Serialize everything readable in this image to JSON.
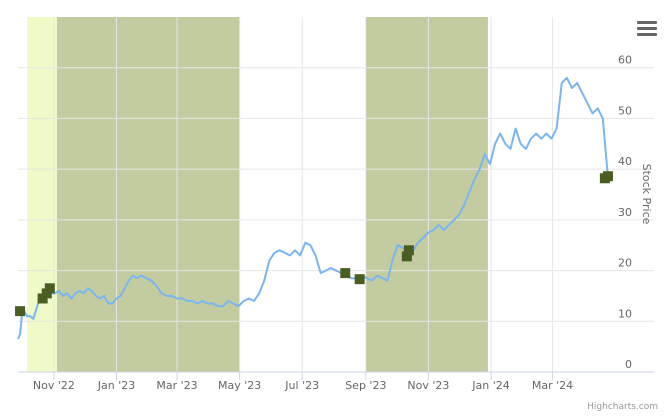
{
  "chart_data": {
    "type": "line",
    "title": "",
    "xlabel": "",
    "ylabel": "Stock Price",
    "ylim": [
      0,
      70
    ],
    "x_range": [
      "2022-09-27",
      "2024-04-26"
    ],
    "x_ticks": [
      {
        "date": "2022-11-01",
        "label": "Nov '22"
      },
      {
        "date": "2023-01-01",
        "label": "Jan '23"
      },
      {
        "date": "2023-03-01",
        "label": "Mar '23"
      },
      {
        "date": "2023-05-01",
        "label": "May '23"
      },
      {
        "date": "2023-07-01",
        "label": "Jul '23"
      },
      {
        "date": "2023-09-01",
        "label": "Sep '23"
      },
      {
        "date": "2023-11-01",
        "label": "Nov '23"
      },
      {
        "date": "2024-01-01",
        "label": "Jan '24"
      },
      {
        "date": "2024-03-01",
        "label": "Mar '24"
      }
    ],
    "y_ticks": [
      0,
      10,
      20,
      30,
      40,
      50,
      60
    ],
    "grid": true,
    "colors": {
      "line": "#7cb5ec",
      "marker": "#4a5d23",
      "band_light": "#eefac8",
      "band_olive": "#c2cca0",
      "grid": "#e6e6e6"
    },
    "bands": [
      {
        "from": "2022-10-06",
        "to": "2022-11-04",
        "color": "#eefac8"
      },
      {
        "from": "2022-11-04",
        "to": "2023-05-01",
        "color": "#c2cca0"
      },
      {
        "from": "2023-09-01",
        "to": "2023-12-29",
        "color": "#c2cca0"
      }
    ],
    "series": [
      {
        "x": [
          "2022-09-27",
          "2022-09-29",
          "2022-10-01",
          "2022-10-03",
          "2022-10-06",
          "2022-10-09",
          "2022-10-12",
          "2022-10-15",
          "2022-10-18",
          "2022-10-21",
          "2022-10-24",
          "2022-10-27",
          "2022-10-30",
          "2022-11-02",
          "2022-11-06",
          "2022-11-10",
          "2022-11-14",
          "2022-11-18",
          "2022-11-22",
          "2022-11-26",
          "2022-11-30",
          "2022-12-04",
          "2022-12-08",
          "2022-12-12",
          "2022-12-16",
          "2022-12-20",
          "2022-12-24",
          "2022-12-28",
          "2023-01-01",
          "2023-01-05",
          "2023-01-09",
          "2023-01-13",
          "2023-01-17",
          "2023-01-21",
          "2023-01-25",
          "2023-01-30",
          "2023-02-04",
          "2023-02-09",
          "2023-02-14",
          "2023-02-19",
          "2023-02-24",
          "2023-03-01",
          "2023-03-06",
          "2023-03-11",
          "2023-03-16",
          "2023-03-21",
          "2023-03-26",
          "2023-03-31",
          "2023-04-05",
          "2023-04-10",
          "2023-04-15",
          "2023-04-20",
          "2023-04-25",
          "2023-04-30",
          "2023-05-05",
          "2023-05-10",
          "2023-05-15",
          "2023-05-20",
          "2023-05-25",
          "2023-05-30",
          "2023-06-04",
          "2023-06-09",
          "2023-06-14",
          "2023-06-19",
          "2023-06-24",
          "2023-06-29",
          "2023-07-04",
          "2023-07-09",
          "2023-07-14",
          "2023-07-19",
          "2023-07-24",
          "2023-07-29",
          "2023-08-03",
          "2023-08-08",
          "2023-08-13",
          "2023-08-18",
          "2023-08-23",
          "2023-08-28",
          "2023-09-02",
          "2023-09-07",
          "2023-09-12",
          "2023-09-17",
          "2023-09-22",
          "2023-09-27",
          "2023-10-02",
          "2023-10-07",
          "2023-10-12",
          "2023-10-17",
          "2023-10-22",
          "2023-10-27",
          "2023-11-01",
          "2023-11-06",
          "2023-11-11",
          "2023-11-16",
          "2023-11-21",
          "2023-11-26",
          "2023-12-01",
          "2023-12-06",
          "2023-12-11",
          "2023-12-16",
          "2023-12-21",
          "2023-12-26",
          "2023-12-31",
          "2024-01-05",
          "2024-01-10",
          "2024-01-15",
          "2024-01-20",
          "2024-01-25",
          "2024-01-30",
          "2024-02-04",
          "2024-02-09",
          "2024-02-14",
          "2024-02-19",
          "2024-02-24",
          "2024-02-29",
          "2024-03-05",
          "2024-03-10",
          "2024-03-15",
          "2024-03-20",
          "2024-03-25",
          "2024-03-30",
          "2024-04-04",
          "2024-04-09",
          "2024-04-14",
          "2024-04-19",
          "2024-04-24"
        ],
        "y": [
          6.5,
          7.5,
          11.5,
          12,
          11,
          11,
          10.5,
          12.5,
          14.5,
          15,
          16,
          16.5,
          15.5,
          15.5,
          16,
          15,
          15.5,
          14.5,
          15.5,
          16,
          15.5,
          16.5,
          16,
          15,
          14.5,
          15,
          13.5,
          13.5,
          14.5,
          15,
          16.5,
          18,
          19,
          18.5,
          19,
          18.5,
          18,
          17,
          15.5,
          15,
          15,
          14.5,
          14.5,
          14,
          14,
          13.5,
          14,
          13.5,
          13.5,
          13,
          13,
          14,
          13.5,
          13,
          14,
          14.5,
          14,
          15.5,
          18,
          22,
          23.5,
          24,
          23.5,
          23,
          24,
          23,
          25.5,
          25,
          23,
          19.5,
          20,
          20.5,
          20,
          19.5,
          19,
          18.5,
          18.5,
          19,
          18.5,
          18,
          19,
          18.5,
          18,
          22,
          25,
          24.5,
          23.5,
          24,
          25.5,
          26.5,
          27.5,
          28,
          29,
          28,
          29,
          30,
          31,
          33,
          35.5,
          38,
          40,
          43,
          41,
          45,
          47,
          45,
          44,
          48,
          45,
          44,
          46,
          47,
          46,
          47,
          46,
          48,
          57,
          58,
          56,
          57,
          55,
          53,
          51,
          52,
          50,
          38.5
        ],
        "name": ""
      }
    ],
    "markers": [
      {
        "x": "2022-09-29",
        "y": 12
      },
      {
        "x": "2022-10-21",
        "y": 14.5
      },
      {
        "x": "2022-10-25",
        "y": 15.5
      },
      {
        "x": "2022-10-28",
        "y": 16.5
      },
      {
        "x": "2023-08-12",
        "y": 19.5
      },
      {
        "x": "2023-08-26",
        "y": 18.3
      },
      {
        "x": "2023-10-11",
        "y": 22.8
      },
      {
        "x": "2023-10-13",
        "y": 24
      },
      {
        "x": "2024-04-21",
        "y": 38.2
      },
      {
        "x": "2024-04-24",
        "y": 38.6
      }
    ]
  },
  "ui": {
    "credits": "Highcharts.com",
    "menu_icon": "hamburger-menu-icon"
  }
}
